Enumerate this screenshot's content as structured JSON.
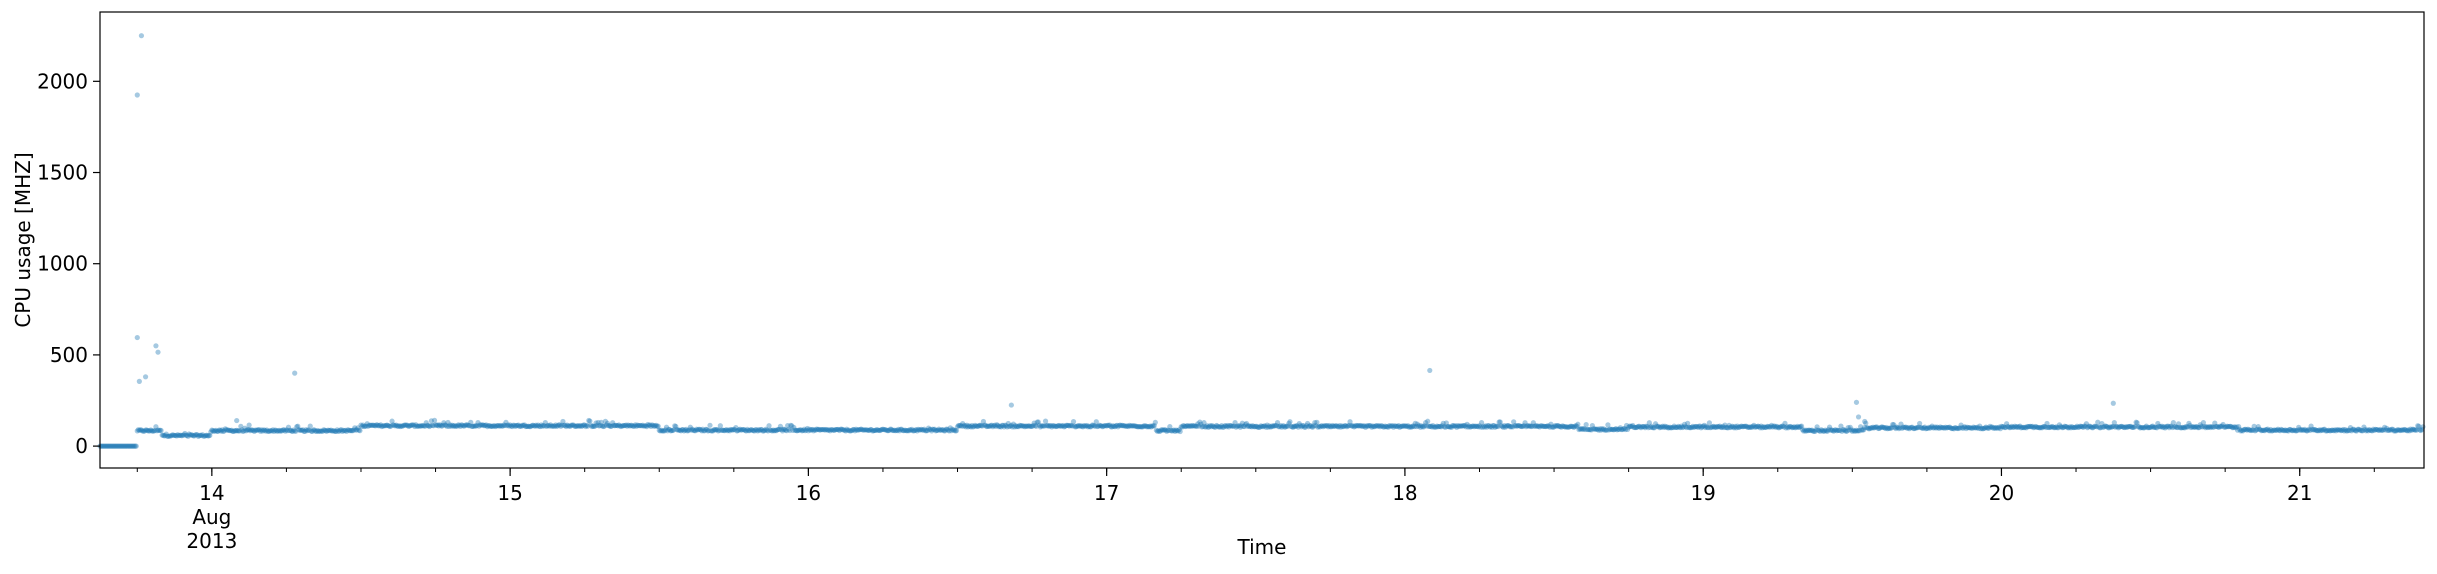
{
  "chart_data": {
    "type": "scatter",
    "xlabel": "Time",
    "ylabel": "CPU usage [MHZ]",
    "x_range": [
      "2013-08-13T15:00",
      "2013-08-21T10:00"
    ],
    "ylim": [
      -120,
      2380
    ],
    "grid": false,
    "marker_color": "#1f77b4",
    "marker_alpha": 0.4,
    "x_major_ticks": [
      {
        "date": "2013-08-14",
        "label": "14",
        "sublabels": [
          "Aug",
          "2013"
        ]
      },
      {
        "date": "2013-08-15",
        "label": "15"
      },
      {
        "date": "2013-08-16",
        "label": "16"
      },
      {
        "date": "2013-08-17",
        "label": "17"
      },
      {
        "date": "2013-08-18",
        "label": "18"
      },
      {
        "date": "2013-08-19",
        "label": "19"
      },
      {
        "date": "2013-08-20",
        "label": "20"
      },
      {
        "date": "2013-08-21",
        "label": "21"
      }
    ],
    "y_ticks": [
      {
        "value": 0,
        "label": "0"
      },
      {
        "value": 500,
        "label": "500"
      },
      {
        "value": 1000,
        "label": "1000"
      },
      {
        "value": 1500,
        "label": "1500"
      },
      {
        "value": 2000,
        "label": "2000"
      }
    ],
    "baseline_segments": [
      {
        "start": "2013-08-13T15:00",
        "end": "2013-08-13T18:00",
        "value": 0
      },
      {
        "start": "2013-08-13T18:00",
        "end": "2013-08-13T20:00",
        "value": 85
      },
      {
        "start": "2013-08-13T20:00",
        "end": "2013-08-14T00:00",
        "value": 58
      },
      {
        "start": "2013-08-14T00:00",
        "end": "2013-08-14T12:00",
        "value": 85
      },
      {
        "start": "2013-08-14T12:00",
        "end": "2013-08-15T12:00",
        "value": 112
      },
      {
        "start": "2013-08-15T12:00",
        "end": "2013-08-16T12:00",
        "value": 88
      },
      {
        "start": "2013-08-16T12:00",
        "end": "2013-08-17T04:00",
        "value": 110
      },
      {
        "start": "2013-08-17T04:00",
        "end": "2013-08-17T06:00",
        "value": 85
      },
      {
        "start": "2013-08-17T06:00",
        "end": "2013-08-18T14:00",
        "value": 108
      },
      {
        "start": "2013-08-18T14:00",
        "end": "2013-08-18T18:00",
        "value": 92
      },
      {
        "start": "2013-08-18T18:00",
        "end": "2013-08-19T08:00",
        "value": 105
      },
      {
        "start": "2013-08-19T08:00",
        "end": "2013-08-19T13:00",
        "value": 85
      },
      {
        "start": "2013-08-19T13:00",
        "end": "2013-08-20T00:00",
        "value": 100
      },
      {
        "start": "2013-08-20T00:00",
        "end": "2013-08-20T19:00",
        "value": 105
      },
      {
        "start": "2013-08-20T19:00",
        "end": "2013-08-21T10:00",
        "value": 88
      }
    ],
    "outliers": [
      {
        "x": "2013-08-13T18:20",
        "y": 2250
      },
      {
        "x": "2013-08-13T18:00",
        "y": 1925
      },
      {
        "x": "2013-08-13T18:00",
        "y": 595
      },
      {
        "x": "2013-08-13T19:30",
        "y": 550
      },
      {
        "x": "2013-08-13T19:40",
        "y": 515
      },
      {
        "x": "2013-08-13T18:40",
        "y": 380
      },
      {
        "x": "2013-08-13T18:10",
        "y": 355
      },
      {
        "x": "2013-08-14T02:00",
        "y": 140
      },
      {
        "x": "2013-08-14T03:00",
        "y": 115
      },
      {
        "x": "2013-08-14T06:40",
        "y": 400
      },
      {
        "x": "2013-08-16T16:20",
        "y": 225
      },
      {
        "x": "2013-08-18T02:00",
        "y": 415
      },
      {
        "x": "2013-08-19T12:20",
        "y": 240
      },
      {
        "x": "2013-08-19T12:30",
        "y": 160
      },
      {
        "x": "2013-08-19T13:00",
        "y": 135
      },
      {
        "x": "2013-08-20T09:00",
        "y": 235
      }
    ]
  }
}
